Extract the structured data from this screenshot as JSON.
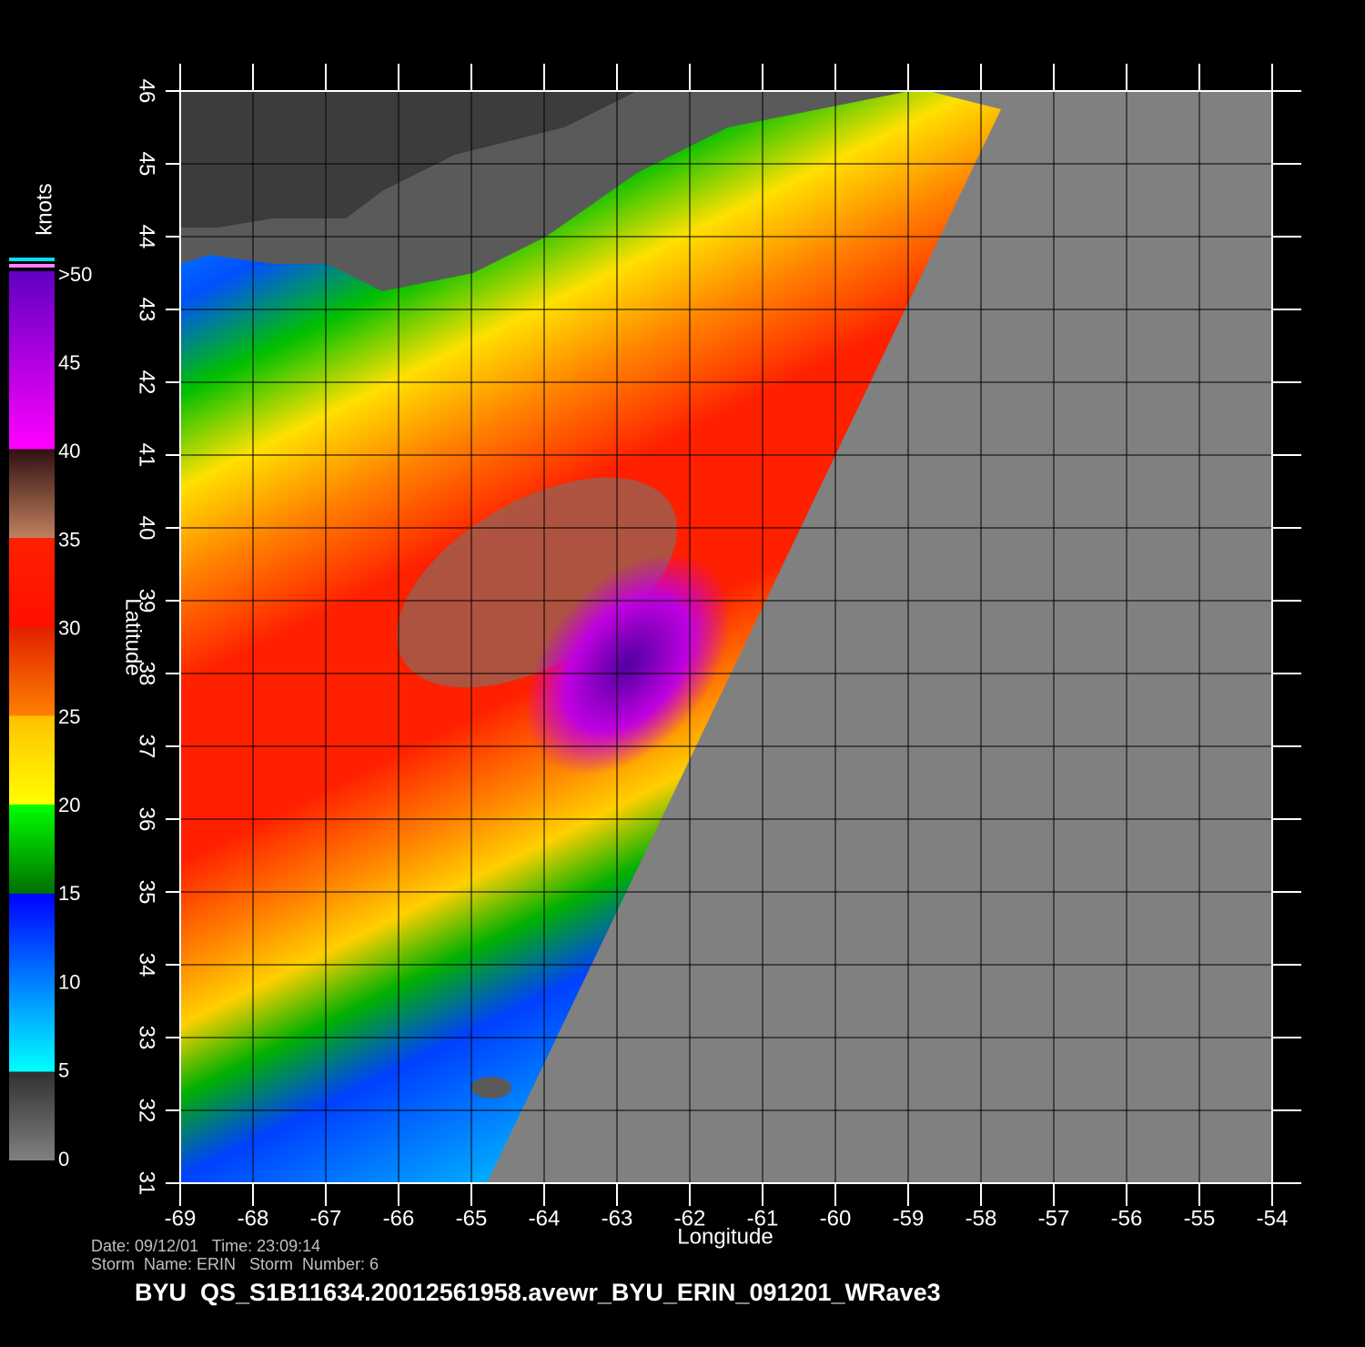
{
  "map": {
    "xlabel": "Longitude",
    "ylabel": "Latitude",
    "xlim": [
      -69,
      -54
    ],
    "ylim": [
      31,
      46
    ],
    "xticks": [
      -69,
      -68,
      -67,
      -66,
      -65,
      -64,
      -63,
      -62,
      -61,
      -60,
      -59,
      -58,
      -57,
      -56,
      -55,
      -54
    ],
    "yticks": [
      31,
      32,
      33,
      34,
      35,
      36,
      37,
      38,
      39,
      40,
      41,
      42,
      43,
      44,
      45,
      46
    ],
    "grid": true
  },
  "colorbar": {
    "unit": "knots",
    "lim": [
      0,
      50
    ],
    "ticks": [
      0,
      5,
      10,
      15,
      20,
      25,
      30,
      35,
      40,
      45,
      {
        "value": 50,
        "label": ">50"
      }
    ]
  },
  "footer": {
    "line1": "Date: 09/12/01   Time: 23:09:14",
    "line2": "Storm  Name: ERIN   Storm  Number: 6",
    "title": "BYU  QS_S1B11634.20012561958.avewr_BYU_ERIN_091201_WRave3"
  }
}
